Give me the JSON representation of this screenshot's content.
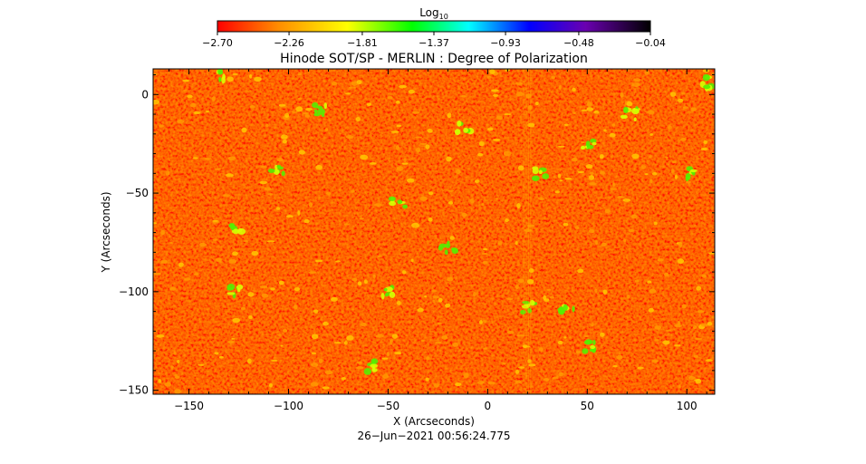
{
  "chart_data": {
    "type": "heatmap",
    "title": "Hinode SOT/SP - MERLIN : Degree of Polarization",
    "xlabel": "X (Arcseconds)",
    "ylabel": "Y (Arcseconds)",
    "xlim": [
      -168,
      114
    ],
    "ylim": [
      -152,
      13
    ],
    "x_ticks": [
      -150,
      -100,
      -50,
      0,
      50,
      100
    ],
    "x_tick_labels": [
      "−150",
      "−100",
      "−50",
      "0",
      "50",
      "100"
    ],
    "y_ticks": [
      -150,
      -100,
      -50,
      0
    ],
    "y_tick_labels": [
      "−150",
      "−100",
      "−50",
      "0"
    ],
    "colorbar": {
      "title": "Log",
      "title_subscript": "10",
      "range": [
        -2.7,
        -0.04
      ],
      "ticks": [
        -2.7,
        -2.26,
        -1.81,
        -1.37,
        -0.93,
        -0.48,
        -0.04
      ],
      "tick_labels": [
        "−2.70",
        "−2.26",
        "−1.81",
        "−1.37",
        "−0.93",
        "−0.48",
        "−0.04"
      ],
      "colors": [
        "#ff0000",
        "#ff8c00",
        "#ffff00",
        "#00ff00",
        "#00ffff",
        "#0000ff",
        "#6a00b0",
        "#000000"
      ]
    },
    "background_value": -2.7,
    "background_color": "#ff2a00",
    "grid": false,
    "legend": "none"
  },
  "timestamp": "26−Jun−2021 00:56:24.775"
}
